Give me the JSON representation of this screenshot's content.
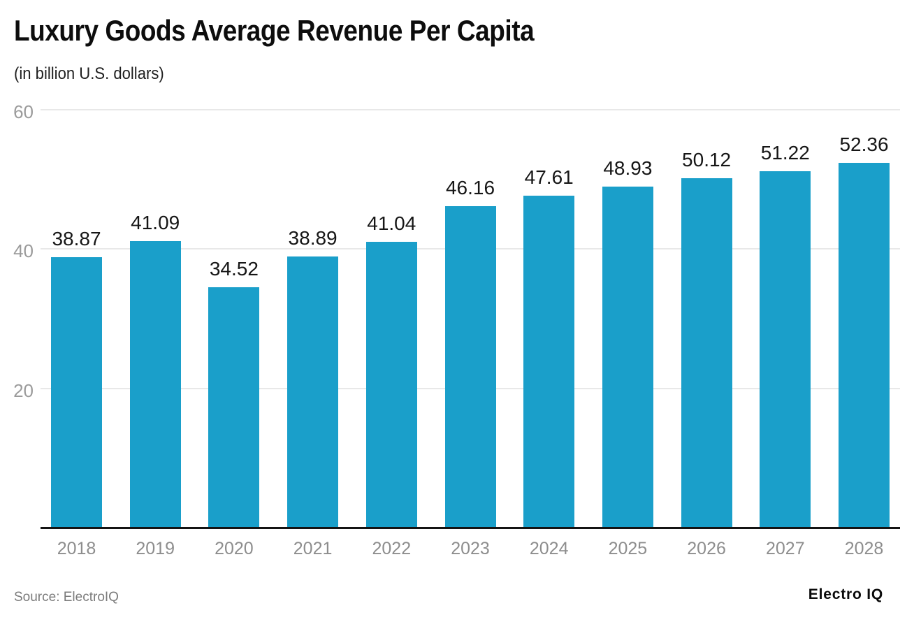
{
  "header": {
    "title": "Luxury Goods Average Revenue Per Capita",
    "subtitle": "(in billion U.S. dollars)"
  },
  "footer": {
    "source": "Source: ElectroIQ",
    "brand": "Electro IQ"
  },
  "chart_data": {
    "type": "bar",
    "title": "Luxury Goods Average Revenue Per Capita",
    "subtitle": "(in billion U.S. dollars)",
    "categories": [
      "2018",
      "2019",
      "2020",
      "2021",
      "2022",
      "2023",
      "2024",
      "2025",
      "2026",
      "2027",
      "2028"
    ],
    "values": [
      38.87,
      41.09,
      34.52,
      38.89,
      41.04,
      46.16,
      47.61,
      48.93,
      50.12,
      51.22,
      52.36
    ],
    "xlabel": "",
    "ylabel": "",
    "ylim": [
      0,
      60
    ],
    "yticks": [
      20,
      40,
      60
    ],
    "grid": true,
    "legend": false,
    "value_labels": true,
    "colors": {
      "bar": "#1a9fca",
      "value_label": "#161616",
      "tick_label": "#9b9b9b",
      "xtick_label": "#8d8d8d",
      "gridline": "#e8e8e8",
      "axis_line": "#141414"
    }
  }
}
